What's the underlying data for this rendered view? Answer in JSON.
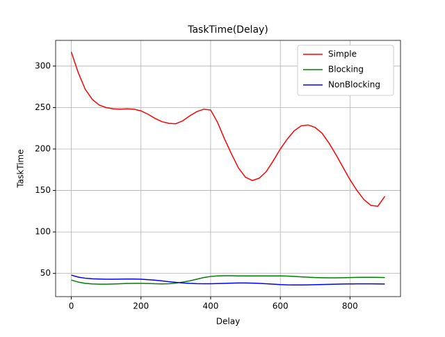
{
  "chart_data": {
    "type": "line",
    "title": "TaskTime(Delay)",
    "x_label": "Delay",
    "y_label": "TaskTime",
    "x": [
      0,
      20,
      40,
      60,
      80,
      100,
      120,
      140,
      160,
      180,
      200,
      220,
      240,
      260,
      280,
      300,
      320,
      340,
      360,
      380,
      400,
      420,
      440,
      460,
      480,
      500,
      520,
      540,
      560,
      580,
      600,
      620,
      640,
      660,
      680,
      700,
      720,
      740,
      760,
      780,
      800,
      820,
      840,
      860,
      880,
      900
    ],
    "series": [
      {
        "name": "Simple",
        "color": "#ff0000",
        "values": [
          317,
          292,
          272,
          260,
          253,
          250,
          248.5,
          248,
          248.5,
          248,
          246,
          242,
          237,
          233,
          231,
          230.5,
          234,
          240,
          245,
          248,
          247,
          232,
          212,
          194,
          177,
          166,
          162,
          165,
          173,
          186,
          200,
          212,
          222,
          228,
          229,
          226,
          219,
          207,
          193,
          178,
          163,
          150,
          139,
          132,
          131,
          143
        ]
      },
      {
        "name": "Blocking",
        "color": "#008000",
        "values": [
          42,
          39.5,
          38,
          37.3,
          37,
          37,
          37.2,
          37.5,
          37.8,
          38,
          38,
          37.8,
          37.5,
          37.3,
          37.5,
          38.3,
          39.5,
          41,
          43,
          45,
          46.3,
          47,
          47.2,
          47.2,
          47,
          47,
          47,
          47,
          47,
          47,
          47,
          46.8,
          46.3,
          45.8,
          45.4,
          45,
          44.8,
          44.7,
          44.7,
          44.8,
          45,
          45.2,
          45.3,
          45.3,
          45.2,
          45
        ]
      },
      {
        "name": "NonBlocking",
        "color": "#0000ff",
        "values": [
          48,
          45.5,
          44.2,
          43.5,
          43.2,
          43,
          43,
          43.1,
          43.2,
          43.2,
          43,
          42.5,
          41.8,
          41,
          40,
          39.2,
          38.5,
          38,
          37.6,
          37.5,
          37.5,
          37.7,
          38,
          38.3,
          38.5,
          38.5,
          38.3,
          38,
          37.5,
          37,
          36.5,
          36.2,
          36.1,
          36.1,
          36.2,
          36.4,
          36.6,
          36.8,
          37,
          37.2,
          37.3,
          37.4,
          37.4,
          37.4,
          37.3,
          37.2
        ]
      }
    ],
    "xlim": [
      -45,
      945
    ],
    "ylim": [
      22,
      331
    ],
    "xticks": [
      0,
      200,
      400,
      600,
      800
    ],
    "yticks": [
      50,
      100,
      150,
      200,
      250,
      300
    ],
    "grid": true,
    "legend": "upper right"
  }
}
